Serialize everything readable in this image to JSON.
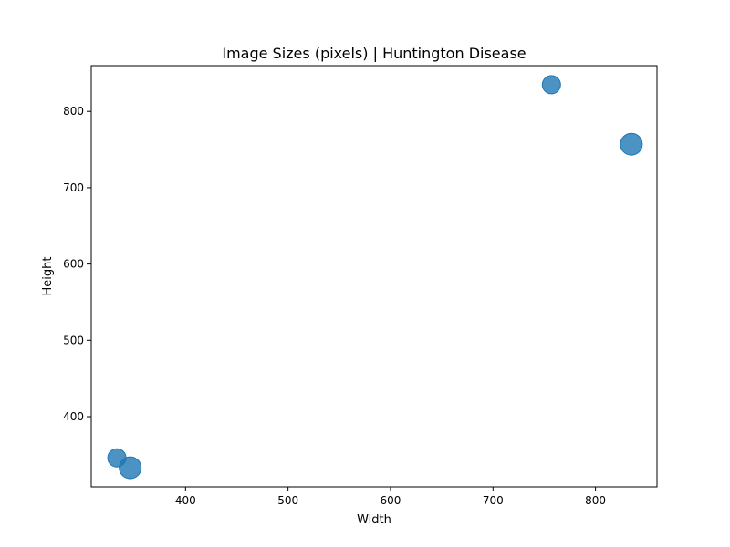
{
  "chart_data": {
    "type": "scatter",
    "title": "Image Sizes (pixels) | Huntington Disease",
    "xlabel": "Width",
    "ylabel": "Height",
    "xlim": [
      308,
      860
    ],
    "ylim": [
      308,
      860
    ],
    "x_ticks": [
      400,
      500,
      600,
      700,
      800
    ],
    "y_ticks": [
      400,
      500,
      600,
      700,
      800
    ],
    "grid": false,
    "marker_color": "#1f77b4",
    "points": [
      {
        "x": 757,
        "y": 835,
        "size": 1
      },
      {
        "x": 835,
        "y": 757,
        "size": 2
      },
      {
        "x": 333,
        "y": 346,
        "size": 1
      },
      {
        "x": 346,
        "y": 333,
        "size": 2
      }
    ]
  }
}
